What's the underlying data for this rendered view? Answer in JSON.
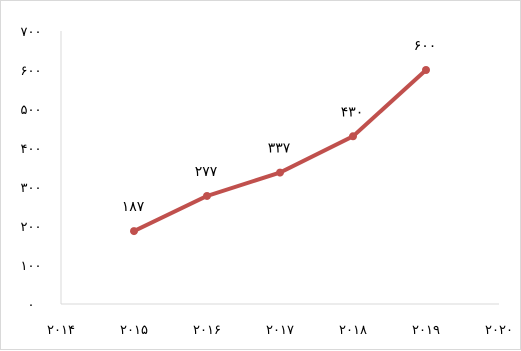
{
  "chart_data": {
    "type": "line",
    "title": "",
    "xlabel": "",
    "ylabel": "",
    "x": [
      2015,
      2016,
      2017,
      2018,
      2019
    ],
    "y": [
      187,
      277,
      337,
      430,
      600
    ],
    "data_labels": [
      "۱۸۷",
      "۲۷۷",
      "۳۳۷",
      "۴۳۰",
      "۶۰۰"
    ],
    "xlim": [
      2014,
      2020
    ],
    "ylim": [
      0,
      700
    ],
    "x_tick_values": [
      2014,
      2015,
      2016,
      2017,
      2018,
      2019,
      2020
    ],
    "x_tick_labels": [
      "۲۰۱۴",
      "۲۰۱۵",
      "۲۰۱۶",
      "۲۰۱۷",
      "۲۰۱۸",
      "۲۰۱۹",
      "۲۰۲۰"
    ],
    "y_tick_values": [
      0,
      100,
      200,
      300,
      400,
      500,
      600,
      700
    ],
    "y_tick_labels": [
      "۰",
      "۱۰۰",
      "۲۰۰",
      "۳۰۰",
      "۴۰۰",
      "۵۰۰",
      "۶۰۰",
      "۷۰۰"
    ],
    "grid": false,
    "legend": "none",
    "series_color": "#c0504d",
    "axis_color": "#d9d9d9"
  }
}
